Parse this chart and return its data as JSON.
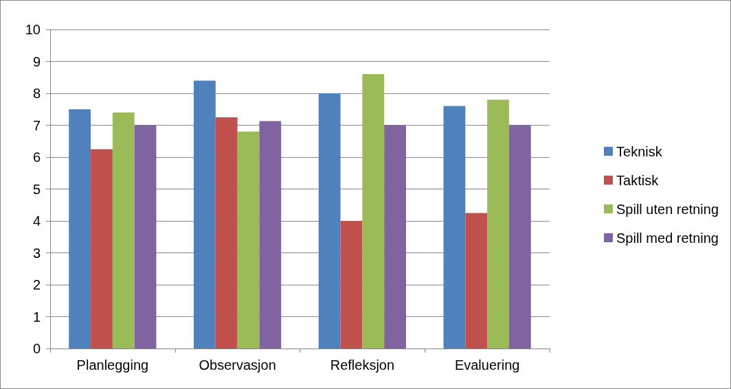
{
  "chart_data": {
    "type": "bar",
    "categories": [
      "Planlegging",
      "Observasjon",
      "Refleksjon",
      "Evaluering"
    ],
    "series": [
      {
        "name": "Teknisk",
        "color": "#4f81bd",
        "values": [
          7.5,
          8.4,
          8.0,
          7.6
        ]
      },
      {
        "name": "Taktisk",
        "color": "#c0504d",
        "values": [
          6.25,
          7.25,
          4.0,
          4.25
        ]
      },
      {
        "name": "Spill uten retning",
        "color": "#9bbb59",
        "values": [
          7.4,
          6.8,
          8.6,
          7.8
        ]
      },
      {
        "name": "Spill med retning",
        "color": "#8064a2",
        "values": [
          7.0,
          7.13,
          7.0,
          7.0
        ]
      }
    ],
    "ylim": [
      0,
      10
    ],
    "yticks": [
      0,
      1,
      2,
      3,
      4,
      5,
      6,
      7,
      8,
      9,
      10
    ],
    "grid": "y",
    "legend": "right"
  }
}
